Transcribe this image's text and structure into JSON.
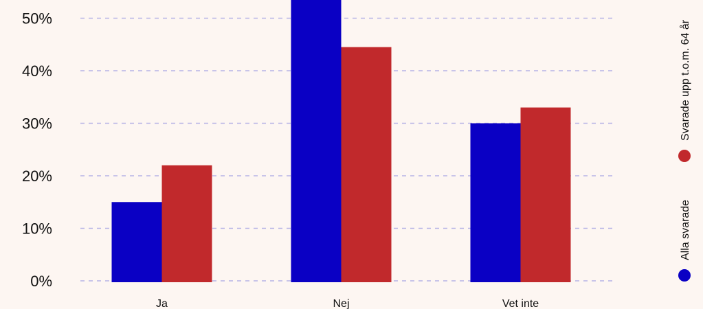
{
  "chart_data": {
    "type": "bar",
    "categories": [
      "Ja",
      "Nej",
      "Vet inte"
    ],
    "series": [
      {
        "name": "Alla svarade",
        "color": "#0a00c4",
        "values": [
          15,
          55,
          30
        ]
      },
      {
        "name": "Svarade upp t.o.m. 64 år",
        "color": "#c1292c",
        "values": [
          22,
          44.5,
          33
        ]
      }
    ],
    "y_ticks": [
      "0%",
      "10%",
      "20%",
      "30%",
      "40%",
      "50%"
    ],
    "ylim": [
      0,
      50
    ],
    "grid": true,
    "grid_color": "#b7b3e6",
    "legend_placement": "right-vertical"
  }
}
